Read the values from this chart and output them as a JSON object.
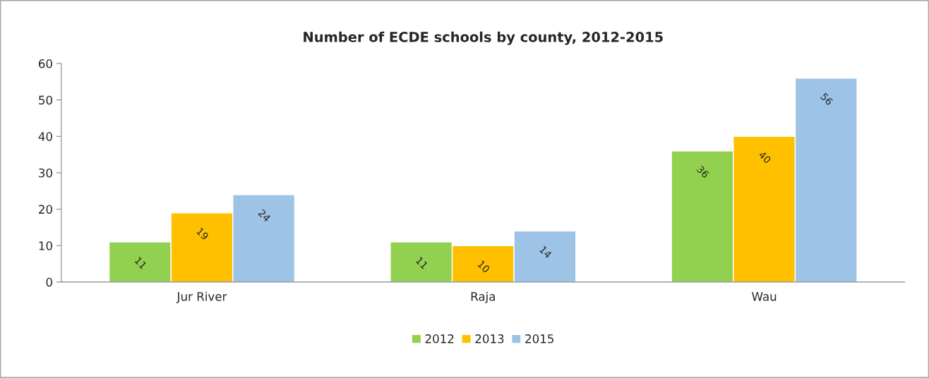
{
  "chart_data": {
    "type": "bar",
    "title": "Number of ECDE schools by county, 2012-2015",
    "categories": [
      "Jur River",
      "Raja",
      "Wau"
    ],
    "series": [
      {
        "name": "2012",
        "color": "#92d050",
        "values": [
          11,
          11,
          36
        ]
      },
      {
        "name": "2013",
        "color": "#ffc000",
        "values": [
          19,
          10,
          40
        ]
      },
      {
        "name": "2015",
        "color": "#9dc3e6",
        "values": [
          24,
          14,
          56
        ]
      }
    ],
    "ylim": [
      0,
      60
    ],
    "yticks": [
      0,
      10,
      20,
      30,
      40,
      50,
      60
    ],
    "grid": false,
    "legend": "bottom",
    "data_labels": true
  }
}
